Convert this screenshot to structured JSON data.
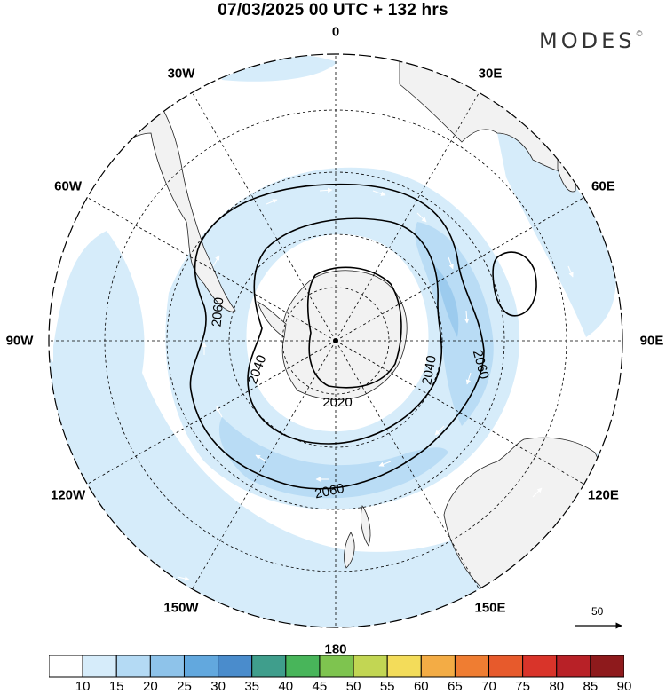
{
  "header": {
    "title": "07/03/2025  00 UTC  + 132 hrs",
    "brand": "MODES",
    "brand_mark": "©"
  },
  "map": {
    "projection": "south-polar-stereographic",
    "longitude_labels": [
      {
        "lon": 0,
        "text": "0"
      },
      {
        "lon": 30,
        "text": "30E"
      },
      {
        "lon": 60,
        "text": "60E"
      },
      {
        "lon": 90,
        "text": "90E"
      },
      {
        "lon": 120,
        "text": "120E"
      },
      {
        "lon": 150,
        "text": "150E"
      },
      {
        "lon": 180,
        "text": "180"
      },
      {
        "lon": -150,
        "text": "150W"
      },
      {
        "lon": -120,
        "text": "120W"
      },
      {
        "lon": -90,
        "text": "90W"
      },
      {
        "lon": -60,
        "text": "60W"
      },
      {
        "lon": -30,
        "text": "30W"
      }
    ],
    "contour_labels": [
      "2020",
      "2040",
      "2040",
      "2060",
      "2060",
      "2060"
    ],
    "vector_reference": {
      "value": "50"
    },
    "colors": {
      "land": "#f2f2f2",
      "ocean": "#ffffff",
      "wind_10_15": "#d6ecfa",
      "wind_15_20": "#b9dcf5",
      "wind_20_25": "#9ccbee"
    }
  },
  "colorbar": {
    "labels": [
      "10",
      "15",
      "20",
      "25",
      "30",
      "35",
      "40",
      "45",
      "50",
      "55",
      "60",
      "65",
      "70",
      "75",
      "80",
      "85",
      "90"
    ],
    "colors": [
      "#ffffff",
      "#d6ecfa",
      "#b4daf4",
      "#8ec3ea",
      "#62a8de",
      "#4a8ccc",
      "#3f9e8c",
      "#48b55a",
      "#7ec44f",
      "#c2d653",
      "#f3dc5a",
      "#f3ac45",
      "#ef7d32",
      "#e75a2c",
      "#d9342a",
      "#b82127",
      "#8e1a1c"
    ]
  }
}
